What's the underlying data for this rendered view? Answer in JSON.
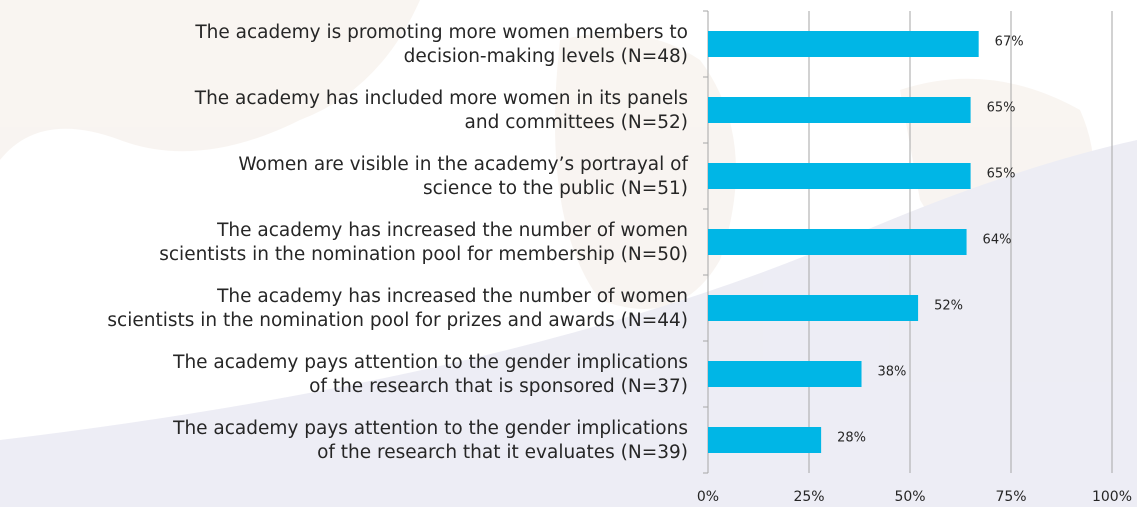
{
  "chart_data": {
    "type": "bar",
    "orientation": "horizontal",
    "categories": [
      [
        "The academy is promoting more women members to",
        "decision-making levels (N=48)"
      ],
      [
        "The academy has included more women in its panels",
        "and committees (N=52)"
      ],
      [
        "Women are visible in the academy’s portrayal of",
        "science to the public (N=51)"
      ],
      [
        "The academy has increased the number of women",
        "scientists in the nomination pool for membership (N=50)"
      ],
      [
        "The academy has increased the number of women",
        "scientists in the nomination pool for prizes and awards (N=44)"
      ],
      [
        "The academy pays attention to the gender implications",
        "of the research that is sponsored (N=37)"
      ],
      [
        "The academy pays attention to the gender implications",
        "of the research that it evaluates (N=39)"
      ]
    ],
    "values": [
      67,
      65,
      65,
      64,
      52,
      38,
      28
    ],
    "value_labels": [
      "67%",
      "65%",
      "65%",
      "64%",
      "52%",
      "38%",
      "28%"
    ],
    "color": "#00b6e6",
    "xlim": [
      0,
      100
    ],
    "xticks": [
      {
        "value": 0,
        "label": "0%"
      },
      {
        "value": 25,
        "label": "25%"
      },
      {
        "value": 50,
        "label": "50%"
      },
      {
        "value": 75,
        "label": "75%"
      },
      {
        "value": 100,
        "label": "100%"
      }
    ],
    "grid": true
  }
}
